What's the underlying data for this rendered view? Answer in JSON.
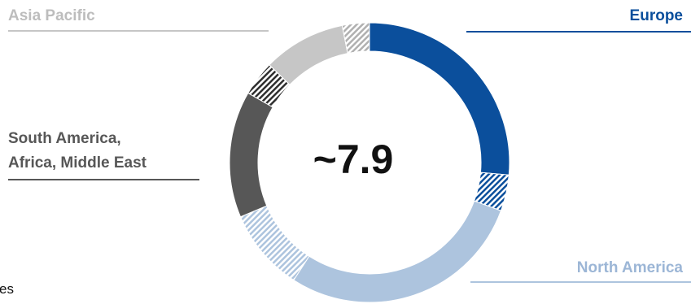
{
  "chart_data": {
    "type": "donut",
    "center_label": "~7.9",
    "regions": [
      {
        "name": "Europe",
        "value": 2.05,
        "color": "#0b4f9c"
      },
      {
        "name": "North America",
        "value": 2.55,
        "color": "#adc4de"
      },
      {
        "name": "South America, Africa, Middle East",
        "value": 0.98,
        "color": "#575757"
      },
      {
        "name": "Asia Pacific",
        "value": 1.12,
        "color": "#c6c6c6"
      }
    ],
    "segments": [
      {
        "region": "Europe",
        "value": 1.77,
        "color": "#0b4f9c",
        "pattern": "solid"
      },
      {
        "region": "Europe",
        "value": 0.28,
        "color": "#0b4f9c",
        "pattern": "hatched"
      },
      {
        "region": "North America",
        "value": 1.91,
        "color": "#adc4de",
        "pattern": "solid"
      },
      {
        "region": "North America",
        "value": 0.64,
        "color": "#adc4de",
        "pattern": "hatched"
      },
      {
        "region": "South America, Africa, Middle East",
        "value": 0.98,
        "color": "#575757",
        "pattern": "solid"
      },
      {
        "region": "Asia Pacific",
        "value": 0.27,
        "color": "#2f2f2f",
        "pattern": "hatched"
      },
      {
        "region": "Asia Pacific",
        "value": 0.64,
        "color": "#c6c6c6",
        "pattern": "solid"
      },
      {
        "region": "Asia Pacific",
        "value": 0.21,
        "color": "#c6c6c6",
        "pattern": "hatched"
      }
    ],
    "legend_labels": {
      "asia": "Asia Pacific",
      "europe": "Europe",
      "sa_line1": "South America,",
      "sa_line2": "Africa, Middle East",
      "north_america": "North America"
    },
    "partial_text": "es"
  }
}
